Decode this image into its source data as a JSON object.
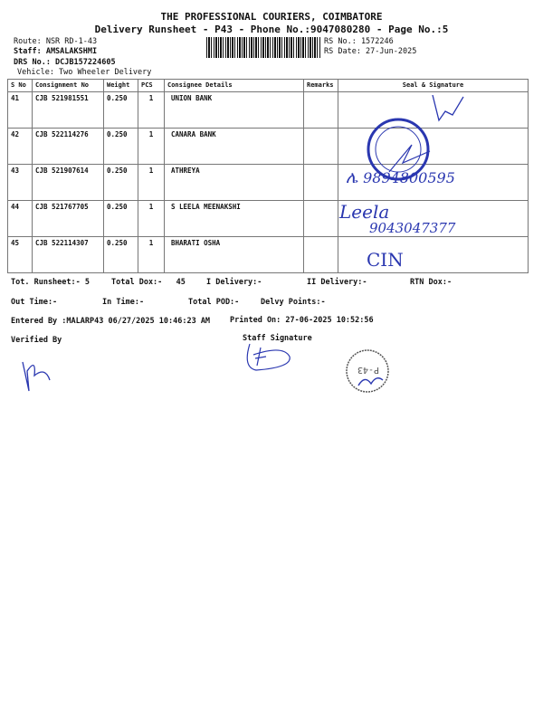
{
  "header": {
    "company": "THE PROFESSIONAL COURIERS, COIMBATORE",
    "subtitle": "Delivery Runsheet - P43 - Phone No.:9047080280 - Page No.:5",
    "route": "Route: NSR RD-1-43",
    "staff": "Staff: AMSALAKSHMI",
    "drs_no": "DRS No.: DCJB157224605",
    "vehicle": "Vehicle: Two Wheeler Delivery",
    "rs_no": "RS No.: 1572246",
    "rs_date": "RS Date: 27-Jun-2025"
  },
  "table": {
    "columns": [
      "S No",
      "Consignment No",
      "Weight",
      "PCS",
      "Consignee Details",
      "Remarks",
      "Seal & Signature"
    ],
    "rows": [
      {
        "sno": "41",
        "consignment": "CJB 521981551",
        "weight": "0.250",
        "pcs": "1",
        "consignee": "UNION BANK",
        "remarks": ""
      },
      {
        "sno": "42",
        "consignment": "CJB 522114276",
        "weight": "0.250",
        "pcs": "1",
        "consignee": "CANARA BANK",
        "remarks": ""
      },
      {
        "sno": "43",
        "consignment": "CJB 521907614",
        "weight": "0.250",
        "pcs": "1",
        "consignee": "ATHREYA",
        "remarks": ""
      },
      {
        "sno": "44",
        "consignment": "CJB 521767705",
        "weight": "0.250",
        "pcs": "1",
        "consignee": "S LEELA MEENAKSHI",
        "remarks": ""
      },
      {
        "sno": "45",
        "consignment": "CJB 522114307",
        "weight": "0.250",
        "pcs": "1",
        "consignee": "BHARATI OSHA",
        "remarks": ""
      }
    ]
  },
  "handwriting": {
    "row43_phone": "9894800595",
    "row44_name": "Leela",
    "row44_phone": "9043047377",
    "row45_mark": "CIN"
  },
  "summary": {
    "tot_runsheet": "Tot. Runsheet:- 5",
    "total_dox": "Total Dox:-   45",
    "i_delivery": "I Delivery:-",
    "ii_delivery": "II Delivery:-",
    "rtn_dox": "RTN Dox:-",
    "out_time": "Out Time:-",
    "in_time": "In Time:-",
    "total_pod": "Total POD:-",
    "delvy_points": "Delvy Points:-",
    "entered_by": "Entered By :MALARP43 06/27/2025 10:46:23 AM",
    "printed_on": "Printed On: 27-06-2025 10:52:56",
    "verified_by": "Verified By",
    "staff_signature": "Staff Signature"
  },
  "colors": {
    "ink": "#2a37b0",
    "text": "#111111"
  }
}
